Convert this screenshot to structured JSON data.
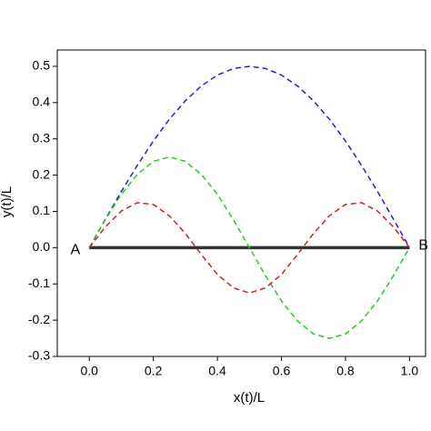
{
  "chart_data": {
    "type": "line",
    "xlabel": "x(t)/L",
    "ylabel": "y(t)/L",
    "x": [
      0,
      0.05,
      0.1,
      0.15,
      0.2,
      0.25,
      0.3,
      0.35,
      0.4,
      0.45,
      0.5,
      0.55,
      0.6,
      0.65,
      0.7,
      0.75,
      0.8,
      0.85,
      0.9,
      0.95,
      1
    ],
    "series": [
      {
        "color": "#333333",
        "dash": false,
        "values": [
          0,
          0,
          0,
          0,
          0,
          0,
          0,
          0,
          0,
          0,
          0,
          0,
          0,
          0,
          0,
          0,
          0,
          0,
          0,
          0,
          0
        ]
      },
      {
        "color": "#2222cc",
        "dash": true,
        "values": [
          0,
          0.078,
          0.155,
          0.227,
          0.294,
          0.354,
          0.405,
          0.446,
          0.476,
          0.494,
          0.5,
          0.494,
          0.476,
          0.446,
          0.405,
          0.354,
          0.294,
          0.227,
          0.155,
          0.078,
          0
        ]
      },
      {
        "color": "#22cc22",
        "dash": true,
        "values": [
          0,
          0.077,
          0.147,
          0.202,
          0.238,
          0.25,
          0.238,
          0.202,
          0.147,
          0.077,
          0,
          -0.077,
          -0.147,
          -0.202,
          -0.238,
          -0.25,
          -0.238,
          -0.202,
          -0.147,
          -0.077,
          0
        ]
      },
      {
        "color": "#cc2222",
        "dash": true,
        "values": [
          0,
          0.057,
          0.101,
          0.124,
          0.119,
          0.088,
          0.039,
          -0.019,
          -0.074,
          -0.111,
          -0.125,
          -0.111,
          -0.074,
          -0.019,
          0.039,
          0.088,
          0.119,
          0.124,
          0.101,
          0.057,
          0
        ]
      }
    ],
    "annotations": [
      "A",
      "B"
    ],
    "xlim": [
      -0.1,
      1.05
    ],
    "ylim": [
      -0.3,
      0.545
    ],
    "xticks": [
      {
        "value": 0,
        "label": "0.0"
      },
      0.2,
      0.4,
      0.6,
      0.8,
      {
        "value": 1,
        "label": "1.0"
      }
    ],
    "yticks": [
      -0.3,
      -0.2,
      -0.1,
      {
        "value": 0,
        "label": "0.0"
      },
      0.1,
      0.2,
      0.3,
      0.4,
      0.5
    ]
  }
}
